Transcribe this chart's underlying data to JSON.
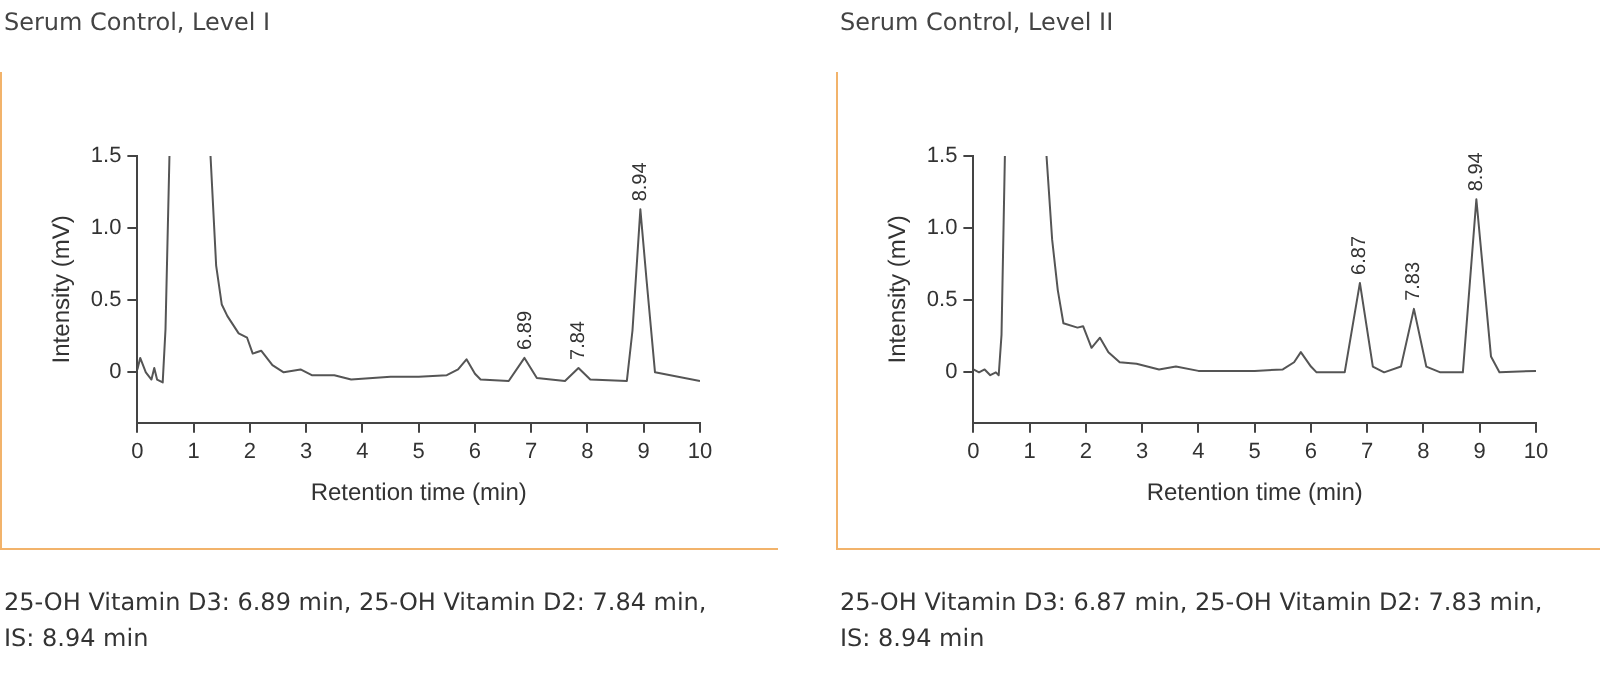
{
  "chart_data": [
    {
      "type": "line",
      "title": "Serum Control, Level I",
      "xlabel": "Retention time (min)",
      "ylabel": "Intensity (mV)",
      "xlim": [
        0,
        10
      ],
      "xticks": [
        0,
        1,
        2,
        3,
        4,
        5,
        6,
        7,
        8,
        9,
        10
      ],
      "ylim": [
        -0.35,
        1.5
      ],
      "yticks": [
        0,
        0.5,
        {
          "value": 1,
          "label": "1.0"
        },
        1.5
      ],
      "grid": false,
      "legend": false,
      "marker": "none",
      "line_style": "solid",
      "series": [
        {
          "color": "#555555",
          "x": [
            0,
            0.05,
            0.15,
            0.25,
            0.3,
            0.35,
            0.45,
            0.5,
            0.57,
            null,
            1.3,
            1.4,
            1.5,
            1.6,
            1.8,
            1.95,
            2.05,
            2.2,
            2.4,
            2.6,
            2.9,
            3.1,
            3.5,
            3.8,
            4.5,
            5.0,
            5.5,
            5.7,
            5.85,
            6.0,
            6.1,
            6.6,
            6.88,
            7.1,
            7.6,
            7.84,
            8.05,
            8.7,
            8.8,
            8.94,
            9.05,
            9.2,
            10
          ],
          "values": [
            0.02,
            0.1,
            0.0,
            -0.05,
            0.03,
            -0.05,
            -0.07,
            0.3,
            1.5,
            null,
            1.5,
            0.74,
            0.47,
            0.39,
            0.27,
            0.24,
            0.13,
            0.15,
            0.05,
            0.0,
            0.02,
            -0.02,
            -0.02,
            -0.05,
            -0.03,
            -0.03,
            -0.02,
            0.02,
            0.09,
            -0.01,
            -0.05,
            -0.06,
            0.1,
            -0.04,
            -0.06,
            0.03,
            -0.05,
            -0.06,
            0.29,
            1.13,
            0.64,
            0.0,
            -0.06
          ]
        }
      ],
      "annotations": [
        {
          "text": "6.89",
          "x": 6.89,
          "y": 0.1
        },
        {
          "text": "7.84",
          "x": 7.84,
          "y": 0.03
        },
        {
          "text": "8.94",
          "x": 8.94,
          "y": 1.13
        },
        "25-OH Vitamin D3: 6.89 min, 25-OH Vitamin D2: 7.84 min, IS: 8.94 min"
      ]
    },
    {
      "type": "line",
      "title": "Serum Control, Level II",
      "xlabel": "Retention time (min)",
      "ylabel": "Intensity (mV)",
      "xlim": [
        0,
        10
      ],
      "xticks": [
        0,
        1,
        2,
        3,
        4,
        5,
        6,
        7,
        8,
        9,
        10
      ],
      "ylim": [
        -0.35,
        1.5
      ],
      "yticks": [
        0,
        0.5,
        {
          "value": 1,
          "label": "1.0"
        },
        1.5
      ],
      "grid": false,
      "legend": false,
      "marker": "none",
      "line_style": "solid",
      "series": [
        {
          "color": "#555555",
          "x": [
            0,
            0.1,
            0.2,
            0.3,
            0.4,
            0.45,
            0.5,
            0.56,
            null,
            1.3,
            1.4,
            1.5,
            1.6,
            1.85,
            1.95,
            2.1,
            2.25,
            2.4,
            2.6,
            2.9,
            3.3,
            3.6,
            4,
            5,
            5.5,
            5.7,
            5.82,
            6.0,
            6.1,
            6.6,
            6.87,
            7.1,
            7.3,
            7.6,
            7.83,
            8.05,
            8.3,
            8.7,
            8.94,
            9.2,
            9.35,
            10
          ],
          "values": [
            0.02,
            0.0,
            0.02,
            -0.02,
            0.0,
            -0.02,
            0.26,
            1.5,
            null,
            1.5,
            0.92,
            0.57,
            0.34,
            0.31,
            0.32,
            0.17,
            0.24,
            0.14,
            0.07,
            0.06,
            0.02,
            0.04,
            0.01,
            0.01,
            0.02,
            0.07,
            0.14,
            0.04,
            0.0,
            0.0,
            0.62,
            0.04,
            0.0,
            0.04,
            0.44,
            0.04,
            0.0,
            0.0,
            1.2,
            0.11,
            0.0,
            0.01
          ]
        }
      ],
      "annotations": [
        {
          "text": "6.87",
          "x": 6.87,
          "y": 0.62
        },
        {
          "text": "7.83",
          "x": 7.83,
          "y": 0.44
        },
        {
          "text": "8.94",
          "x": 8.94,
          "y": 1.2
        },
        "25-OH Vitamin D3: 6.87 min, 25-OH Vitamin D2: 7.83 min, IS: 8.94 min"
      ]
    }
  ]
}
